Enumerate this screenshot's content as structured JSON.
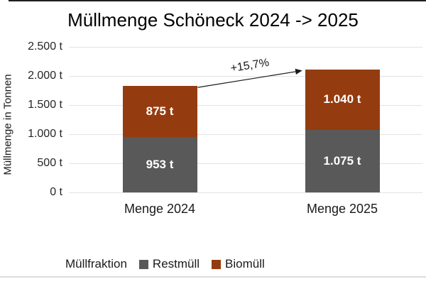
{
  "chart_data": {
    "type": "bar",
    "stacked": true,
    "title": "Müllmenge Schöneck 2024 -> 2025",
    "xlabel": "",
    "ylabel": "Müllmenge in Tonnen",
    "categories": [
      "Menge 2024",
      "Menge 2025"
    ],
    "series": [
      {
        "name": "Restmüll",
        "color": "#595959",
        "values": [
          953,
          1075
        ],
        "labels": [
          "953 t",
          "1.075 t"
        ]
      },
      {
        "name": "Biomüll",
        "color": "#943c10",
        "values": [
          875,
          1040
        ],
        "labels": [
          "875 t",
          "1.040 t"
        ]
      }
    ],
    "ylim": [
      0,
      2500
    ],
    "yticks": [
      {
        "value": 0,
        "label": "0 t"
      },
      {
        "value": 500,
        "label": "500 t"
      },
      {
        "value": 1000,
        "label": "1.000 t"
      },
      {
        "value": 1500,
        "label": "1.500 t"
      },
      {
        "value": 2000,
        "label": "2.000 t"
      },
      {
        "value": 2500,
        "label": "2.500 t"
      }
    ],
    "grid": true,
    "legend": {
      "title": "Müllfraktion",
      "position": "bottom"
    },
    "annotation": {
      "text": "+15,7%",
      "from_category": "Menge 2024",
      "to_category": "Menge 2025"
    },
    "arrow_color": "#1a1a1a"
  }
}
